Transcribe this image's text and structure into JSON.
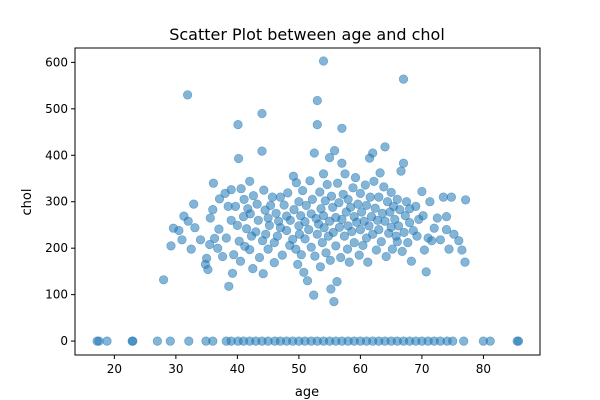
{
  "chart_data": {
    "type": "scatter",
    "title": "Scatter Plot between age and chol",
    "xlabel": "age",
    "ylabel": "chol",
    "xlim": [
      13.6,
      89.2
    ],
    "ylim": [
      -30,
      631
    ],
    "xticks": [
      20,
      30,
      40,
      50,
      60,
      70,
      80
    ],
    "yticks": [
      0,
      100,
      200,
      300,
      400,
      500,
      600
    ],
    "grid": false,
    "color": "#1f77b4",
    "alpha": 0.55,
    "points": [
      [
        17.2,
        0
      ],
      [
        17.5,
        0
      ],
      [
        18.8,
        0
      ],
      [
        22.9,
        0
      ],
      [
        23.0,
        0
      ],
      [
        27.0,
        0
      ],
      [
        29.1,
        0
      ],
      [
        32.1,
        0
      ],
      [
        34.9,
        0
      ],
      [
        36.0,
        0
      ],
      [
        38.2,
        0
      ],
      [
        39.0,
        0
      ],
      [
        40.1,
        0
      ],
      [
        41.0,
        0
      ],
      [
        42.0,
        0
      ],
      [
        43.0,
        0
      ],
      [
        44.0,
        0
      ],
      [
        45.0,
        0
      ],
      [
        46.1,
        0
      ],
      [
        47.0,
        0
      ],
      [
        48.0,
        0
      ],
      [
        49.0,
        0
      ],
      [
        50.0,
        0
      ],
      [
        51.0,
        0
      ],
      [
        52.0,
        0
      ],
      [
        53.0,
        0
      ],
      [
        54.0,
        0
      ],
      [
        55.0,
        0
      ],
      [
        56.0,
        0
      ],
      [
        57.0,
        0
      ],
      [
        58.0,
        0
      ],
      [
        59.0,
        0
      ],
      [
        60.0,
        0
      ],
      [
        61.0,
        0
      ],
      [
        62.0,
        0
      ],
      [
        63.0,
        0
      ],
      [
        64.0,
        0
      ],
      [
        65.0,
        0
      ],
      [
        66.0,
        0
      ],
      [
        67.0,
        0
      ],
      [
        68.0,
        0
      ],
      [
        69.0,
        0
      ],
      [
        70.0,
        0
      ],
      [
        71.0,
        0
      ],
      [
        72.0,
        0
      ],
      [
        73.0,
        0
      ],
      [
        74.1,
        0
      ],
      [
        75.0,
        0
      ],
      [
        76.8,
        0
      ],
      [
        80.0,
        0
      ],
      [
        81.1,
        0
      ],
      [
        85.5,
        0
      ],
      [
        85.7,
        0
      ],
      [
        28.0,
        132
      ],
      [
        29.2,
        205
      ],
      [
        29.6,
        243
      ],
      [
        30.5,
        238
      ],
      [
        31.0,
        218
      ],
      [
        31.3,
        269
      ],
      [
        31.9,
        530
      ],
      [
        32.0,
        258
      ],
      [
        32.5,
        198
      ],
      [
        32.9,
        295
      ],
      [
        33.1,
        244
      ],
      [
        34.0,
        218
      ],
      [
        34.8,
        165
      ],
      [
        35.0,
        178
      ],
      [
        35.2,
        154
      ],
      [
        35.5,
        208
      ],
      [
        35.6,
        265
      ],
      [
        36.0,
        283
      ],
      [
        36.1,
        340
      ],
      [
        36.3,
        221
      ],
      [
        36.8,
        200
      ],
      [
        37.0,
        241
      ],
      [
        37.1,
        306
      ],
      [
        37.6,
        182
      ],
      [
        38.0,
        318
      ],
      [
        38.2,
        222
      ],
      [
        38.5,
        290
      ],
      [
        38.6,
        118
      ],
      [
        39.0,
        326
      ],
      [
        39.0,
        260
      ],
      [
        39.2,
        146
      ],
      [
        39.4,
        186
      ],
      [
        39.7,
        290
      ],
      [
        40.0,
        249
      ],
      [
        40.1,
        466
      ],
      [
        40.2,
        393
      ],
      [
        40.3,
        215
      ],
      [
        40.5,
        172
      ],
      [
        40.6,
        328
      ],
      [
        41.0,
        268
      ],
      [
        41.1,
        305
      ],
      [
        41.2,
        204
      ],
      [
        41.5,
        242
      ],
      [
        41.7,
        285
      ],
      [
        42.0,
        197
      ],
      [
        42.0,
        344
      ],
      [
        42.1,
        274
      ],
      [
        42.3,
        226
      ],
      [
        42.5,
        156
      ],
      [
        42.6,
        313
      ],
      [
        43.0,
        235
      ],
      [
        43.2,
        295
      ],
      [
        43.4,
        260
      ],
      [
        43.6,
        180
      ],
      [
        44.0,
        490
      ],
      [
        44.0,
        409
      ],
      [
        44.1,
        216
      ],
      [
        44.2,
        145
      ],
      [
        44.3,
        325
      ],
      [
        44.5,
        282
      ],
      [
        44.6,
        230
      ],
      [
        45.0,
        265
      ],
      [
        45.0,
        198
      ],
      [
        45.2,
        249
      ],
      [
        45.4,
        292
      ],
      [
        45.7,
        310
      ],
      [
        46.0,
        169
      ],
      [
        46.0,
        212
      ],
      [
        46.3,
        275
      ],
      [
        46.5,
        226
      ],
      [
        46.7,
        258
      ],
      [
        47.0,
        244
      ],
      [
        47.0,
        310
      ],
      [
        47.3,
        185
      ],
      [
        47.6,
        293
      ],
      [
        48.0,
        269
      ],
      [
        48.0,
        238
      ],
      [
        48.2,
        319
      ],
      [
        48.5,
        206
      ],
      [
        48.6,
        260
      ],
      [
        49.0,
        219
      ],
      [
        49.1,
        355
      ],
      [
        49.2,
        283
      ],
      [
        49.5,
        198
      ],
      [
        49.6,
        341
      ],
      [
        49.8,
        165
      ],
      [
        50.0,
        248
      ],
      [
        50.0,
        300
      ],
      [
        50.1,
        230
      ],
      [
        50.3,
        270
      ],
      [
        50.4,
        186
      ],
      [
        50.6,
        324
      ],
      [
        50.8,
        148
      ],
      [
        51.0,
        257
      ],
      [
        51.0,
        220
      ],
      [
        51.2,
        292
      ],
      [
        51.4,
        130
      ],
      [
        51.6,
        240
      ],
      [
        51.8,
        345
      ],
      [
        52.0,
        274
      ],
      [
        52.0,
        202
      ],
      [
        52.2,
        305
      ],
      [
        52.4,
        99
      ],
      [
        52.5,
        405
      ],
      [
        52.6,
        183
      ],
      [
        52.8,
        264
      ],
      [
        53.0,
        518
      ],
      [
        53.0,
        466
      ],
      [
        53.0,
        230
      ],
      [
        53.2,
        252
      ],
      [
        53.4,
        321
      ],
      [
        53.5,
        160
      ],
      [
        53.6,
        285
      ],
      [
        53.8,
        212
      ],
      [
        54.0,
        603
      ],
      [
        54.0,
        360
      ],
      [
        54.0,
        270
      ],
      [
        54.1,
        244
      ],
      [
        54.3,
        302
      ],
      [
        54.4,
        190
      ],
      [
        54.6,
        337
      ],
      [
        54.8,
        226
      ],
      [
        55.0,
        395
      ],
      [
        55.0,
        258
      ],
      [
        55.1,
        174
      ],
      [
        55.2,
        112
      ],
      [
        55.3,
        312
      ],
      [
        55.5,
        288
      ],
      [
        55.6,
        234
      ],
      [
        55.7,
        85
      ],
      [
        55.8,
        410
      ],
      [
        56.0,
        266
      ],
      [
        56.0,
        205
      ],
      [
        56.2,
        128
      ],
      [
        56.3,
        340
      ],
      [
        56.5,
        298
      ],
      [
        56.6,
        245
      ],
      [
        56.8,
        180
      ],
      [
        57.0,
        458
      ],
      [
        57.0,
        383
      ],
      [
        57.0,
        262
      ],
      [
        57.2,
        316
      ],
      [
        57.4,
        226
      ],
      [
        57.5,
        360
      ],
      [
        57.7,
        278
      ],
      [
        57.9,
        198
      ],
      [
        58.0,
        248
      ],
      [
        58.0,
        305
      ],
      [
        58.2,
        170
      ],
      [
        58.4,
        288
      ],
      [
        58.6,
        236
      ],
      [
        58.8,
        330
      ],
      [
        59.0,
        268
      ],
      [
        59.0,
        212
      ],
      [
        59.2,
        352
      ],
      [
        59.4,
        256
      ],
      [
        59.6,
        295
      ],
      [
        59.8,
        185
      ],
      [
        60.0,
        240
      ],
      [
        60.0,
        318
      ],
      [
        60.2,
        278
      ],
      [
        60.4,
        206
      ],
      [
        60.6,
        258
      ],
      [
        60.8,
        336
      ],
      [
        61.0,
        222
      ],
      [
        61.0,
        292
      ],
      [
        61.2,
        170
      ],
      [
        61.4,
        248
      ],
      [
        61.5,
        394
      ],
      [
        61.6,
        310
      ],
      [
        61.8,
        268
      ],
      [
        62.0,
        405
      ],
      [
        62.0,
        230
      ],
      [
        62.2,
        344
      ],
      [
        62.4,
        286
      ],
      [
        62.6,
        196
      ],
      [
        62.8,
        260
      ],
      [
        63.0,
        310
      ],
      [
        63.0,
        240
      ],
      [
        63.2,
        362
      ],
      [
        63.4,
        214
      ],
      [
        63.6,
        275
      ],
      [
        63.8,
        332
      ],
      [
        64.0,
        418
      ],
      [
        64.0,
        258
      ],
      [
        64.2,
        182
      ],
      [
        64.4,
        300
      ],
      [
        64.6,
        232
      ],
      [
        64.8,
        278
      ],
      [
        65.0,
        245
      ],
      [
        65.0,
        320
      ],
      [
        65.2,
        198
      ],
      [
        65.4,
        290
      ],
      [
        65.6,
        262
      ],
      [
        65.8,
        226
      ],
      [
        66.0,
        305
      ],
      [
        66.0,
        214
      ],
      [
        66.2,
        248
      ],
      [
        66.4,
        283
      ],
      [
        66.6,
        366
      ],
      [
        66.8,
        193
      ],
      [
        67.0,
        564
      ],
      [
        67.0,
        383
      ],
      [
        67.1,
        234
      ],
      [
        67.3,
        270
      ],
      [
        67.5,
        300
      ],
      [
        67.7,
        212
      ],
      [
        68.0,
        255
      ],
      [
        68.0,
        285
      ],
      [
        68.3,
        172
      ],
      [
        68.6,
        238
      ],
      [
        69.0,
        290
      ],
      [
        69.2,
        226
      ],
      [
        69.5,
        262
      ],
      [
        70.0,
        322
      ],
      [
        70.2,
        270
      ],
      [
        70.4,
        196
      ],
      [
        70.7,
        149
      ],
      [
        71.0,
        222
      ],
      [
        71.3,
        300
      ],
      [
        71.6,
        216
      ],
      [
        72.0,
        243
      ],
      [
        72.5,
        265
      ],
      [
        73.0,
        218
      ],
      [
        73.5,
        310
      ],
      [
        74.0,
        240
      ],
      [
        74.0,
        268
      ],
      [
        74.4,
        198
      ],
      [
        74.8,
        310
      ],
      [
        75.2,
        230
      ],
      [
        76.0,
        216
      ],
      [
        76.5,
        196
      ],
      [
        77.0,
        170
      ],
      [
        77.1,
        304
      ]
    ]
  }
}
